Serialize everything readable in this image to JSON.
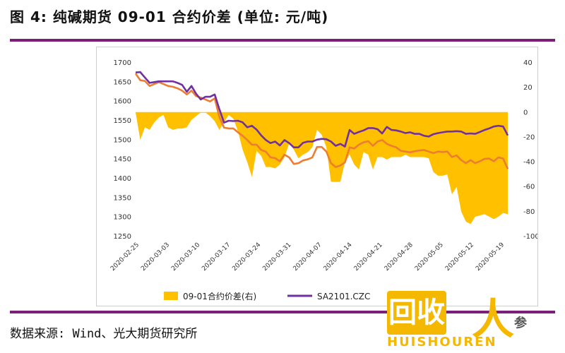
{
  "header": {
    "title": "图 4: 纯碱期货 09-01 合约价差 (单位: 元/吨)"
  },
  "footer": {
    "source": "数据来源: Wind、光大期货研究所"
  },
  "colors": {
    "rule": "#7a1f7a",
    "spread": "#ffc000",
    "sa2101": "#7030a0",
    "sa2109": "#ed7d31"
  },
  "watermark": {
    "badge": "回收",
    "sub": "HUISHOUREN",
    "tail": "参"
  },
  "chart_data": {
    "type": "line",
    "title": "",
    "x_tick_labels": [
      "2020-02-25",
      "2020-03-03",
      "2020-03-10",
      "2020-03-17",
      "2020-03-24",
      "2020-03-31",
      "2020-04-07",
      "2020-04-14",
      "2020-04-21",
      "2020-04-28",
      "2020-05-05",
      "2020-05-12",
      "2020-05-19"
    ],
    "left_axis": {
      "ylim": [
        1250,
        1700
      ],
      "ticks": [
        1250,
        1300,
        1350,
        1400,
        1450,
        1500,
        1550,
        1600,
        1650,
        1700
      ]
    },
    "right_axis": {
      "ylim": [
        -100,
        40
      ],
      "ticks": [
        -100,
        -80,
        -60,
        -40,
        -20,
        0,
        20,
        40
      ]
    },
    "legend": {
      "position": "bottom",
      "entries": [
        "09-01合约价差(右)",
        "SA2101.CZC"
      ]
    },
    "series": [
      {
        "name": "09-01合约价差(右)",
        "type": "area",
        "axis": "right",
        "values": [
          0,
          -22,
          -12,
          -14,
          -8,
          -4,
          -2,
          -12,
          -14,
          -13,
          -13,
          -12,
          -6,
          -3,
          0,
          0,
          -3,
          -7,
          -14,
          -8,
          -2,
          -5,
          -15,
          -30,
          -40,
          -52,
          -31,
          -35,
          -44,
          -44,
          -45,
          -42,
          -36,
          -25,
          -30,
          -37,
          -34,
          -32,
          -28,
          -14,
          -18,
          -28,
          -56,
          -56,
          -56,
          -40,
          -34,
          -42,
          -46,
          -32,
          -34,
          -46,
          -36,
          -36,
          -38,
          -36,
          -36,
          -36,
          -34,
          -36,
          -36,
          -36,
          -36,
          -37,
          -48,
          -51,
          -51,
          -50,
          -66,
          -60,
          -80,
          -88,
          -90,
          -84,
          -83,
          -82,
          -84,
          -86,
          -84,
          -81,
          -82
        ]
      },
      {
        "name": "SA2101.CZC",
        "type": "line",
        "axis": "left",
        "values": [
          1675,
          1676,
          1662,
          1648,
          1650,
          1652,
          1652,
          1652,
          1652,
          1648,
          1643,
          1625,
          1640,
          1620,
          1605,
          1612,
          1612,
          1618,
          1580,
          1545,
          1550,
          1549,
          1550,
          1546,
          1533,
          1537,
          1527,
          1512,
          1500,
          1492,
          1496,
          1486,
          1500,
          1492,
          1481,
          1481,
          1493,
          1496,
          1496,
          1501,
          1503,
          1502,
          1496,
          1485,
          1490,
          1483,
          1526,
          1516,
          1521,
          1525,
          1531,
          1531,
          1528,
          1517,
          1534,
          1526,
          1525,
          1522,
          1518,
          1520,
          1516,
          1516,
          1511,
          1509,
          1515,
          1518,
          1520,
          1522,
          1522,
          1523,
          1522,
          1516,
          1517,
          1516,
          1521,
          1526,
          1530,
          1535,
          1537,
          1535,
          1512
        ]
      },
      {
        "type": "line",
        "axis": "left",
        "values": [
          1672,
          1655,
          1653,
          1640,
          1645,
          1650,
          1645,
          1640,
          1638,
          1634,
          1628,
          1618,
          1628,
          1614,
          1610,
          1605,
          1600,
          1608,
          1560,
          1532,
          1530,
          1530,
          1520,
          1511,
          1500,
          1488,
          1488,
          1474,
          1470,
          1455,
          1453,
          1445,
          1462,
          1455,
          1438,
          1440,
          1447,
          1450,
          1455,
          1482,
          1482,
          1470,
          1440,
          1430,
          1434,
          1442,
          1481,
          1478,
          1488,
          1494,
          1497,
          1485,
          1496,
          1500,
          1490,
          1485,
          1481,
          1472,
          1470,
          1468,
          1471,
          1473,
          1474,
          1470,
          1466,
          1470,
          1469,
          1470,
          1456,
          1460,
          1448,
          1440,
          1448,
          1440,
          1445,
          1451,
          1452,
          1445,
          1455,
          1452,
          1425
        ]
      }
    ]
  }
}
